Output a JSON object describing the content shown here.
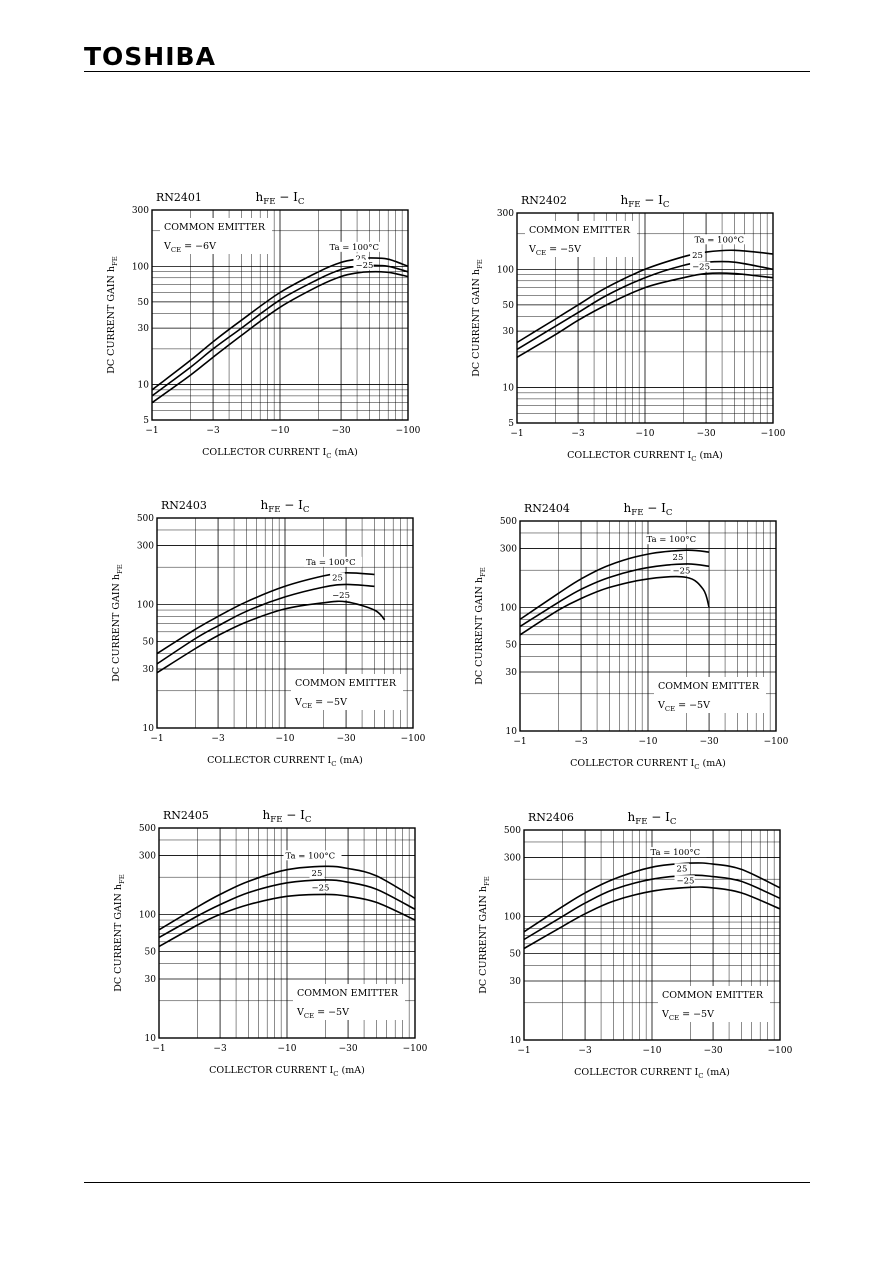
{
  "header": {
    "brand": "TOSHIBA"
  },
  "chart_data": [
    {
      "type": "line",
      "part": "RN2401",
      "title": {
        "main": "h",
        "sub": "FE",
        "mid": " − I",
        "sub2": "C"
      },
      "xlabel": {
        "main": "COLLECTOR CURRENT   I",
        "sub": "C",
        "unit": "  (mA)"
      },
      "ylabel": {
        "main": "DC CURRENT GAIN   h",
        "sub": "FE"
      },
      "xlim": [
        -1,
        -100
      ],
      "ylim": [
        5,
        300
      ],
      "xscale": "log",
      "yscale": "log",
      "xticks": [
        -1,
        -3,
        -10,
        -30,
        -100
      ],
      "yticks": [
        5,
        10,
        30,
        50,
        100,
        300
      ],
      "grid": true,
      "conditions": {
        "line1": "COMMON EMITTER",
        "line2_main": "V",
        "line2_sub": "CE",
        "line2_rest": " = −6V",
        "position": "top-left"
      },
      "series": [
        {
          "name": "Ta = 100°C",
          "x": [
            -1,
            -2,
            -3,
            -5,
            -10,
            -20,
            -30,
            -40,
            -50,
            -70,
            -100
          ],
          "y": [
            9,
            16,
            23,
            35,
            60,
            90,
            108,
            115,
            118,
            115,
            100
          ]
        },
        {
          "name": "25",
          "x": [
            -1,
            -2,
            -3,
            -5,
            -10,
            -20,
            -30,
            -40,
            -50,
            -70,
            -100
          ],
          "y": [
            8,
            14,
            20,
            30,
            52,
            78,
            94,
            100,
            102,
            100,
            90
          ]
        },
        {
          "name": "−25",
          "x": [
            -1,
            -2,
            -3,
            -5,
            -10,
            -20,
            -30,
            -40,
            -50,
            -70,
            -100
          ],
          "y": [
            7,
            12,
            17,
            26,
            45,
            68,
            82,
            88,
            90,
            89,
            82
          ]
        }
      ]
    },
    {
      "type": "line",
      "part": "RN2402",
      "title": {
        "main": "h",
        "sub": "FE",
        "mid": " − I",
        "sub2": "C"
      },
      "xlabel": {
        "main": "COLLECTOR CURRENT   I",
        "sub": "C",
        "unit": "  (mA)"
      },
      "ylabel": {
        "main": "DC CURRENT GAIN   h",
        "sub": "FE"
      },
      "xlim": [
        -1,
        -100
      ],
      "ylim": [
        5,
        300
      ],
      "xscale": "log",
      "yscale": "log",
      "xticks": [
        -1,
        -3,
        -10,
        -30,
        -100
      ],
      "yticks": [
        5,
        10,
        30,
        50,
        100,
        300
      ],
      "grid": true,
      "conditions": {
        "line1": "COMMON EMITTER",
        "line2_main": "V",
        "line2_sub": "CE",
        "line2_rest": " = −5V",
        "position": "top-left"
      },
      "series": [
        {
          "name": "Ta = 100°C",
          "x": [
            -1,
            -2,
            -3,
            -5,
            -10,
            -20,
            -30,
            -50,
            -100
          ],
          "y": [
            24,
            38,
            50,
            70,
            100,
            128,
            140,
            145,
            135
          ]
        },
        {
          "name": "25",
          "x": [
            -1,
            -2,
            -3,
            -5,
            -10,
            -20,
            -30,
            -50,
            -100
          ],
          "y": [
            21,
            33,
            43,
            60,
            85,
            108,
            115,
            115,
            100
          ]
        },
        {
          "name": "−25",
          "x": [
            -1,
            -2,
            -3,
            -5,
            -10,
            -20,
            -30,
            -50,
            -100
          ],
          "y": [
            18,
            28,
            37,
            50,
            70,
            85,
            92,
            92,
            85
          ]
        }
      ]
    },
    {
      "type": "line",
      "part": "RN2403",
      "title": {
        "main": "h",
        "sub": "FE",
        "mid": " − I",
        "sub2": "C"
      },
      "xlabel": {
        "main": "COLLECTOR CURRENT   I",
        "sub": "C",
        "unit": "  (mA)"
      },
      "ylabel": {
        "main": "DC CURRENT GAIN   h",
        "sub": "FE"
      },
      "xlim": [
        -1,
        -100
      ],
      "ylim": [
        10,
        500
      ],
      "xscale": "log",
      "yscale": "log",
      "xticks": [
        -1,
        -3,
        -10,
        -30,
        -100
      ],
      "yticks": [
        10,
        30,
        50,
        100,
        300,
        500
      ],
      "grid": true,
      "conditions": {
        "line1": "COMMON EMITTER",
        "line2_main": "V",
        "line2_sub": "CE",
        "line2_rest": " = −5V",
        "position": "bottom-right"
      },
      "series": [
        {
          "name": "Ta = 100°C",
          "x": [
            -1,
            -2,
            -3,
            -5,
            -10,
            -20,
            -30,
            -50
          ],
          "y": [
            40,
            63,
            80,
            105,
            140,
            170,
            180,
            175
          ]
        },
        {
          "name": "25",
          "x": [
            -1,
            -2,
            -3,
            -5,
            -10,
            -20,
            -30,
            -50
          ],
          "y": [
            33,
            53,
            67,
            88,
            115,
            138,
            145,
            140
          ]
        },
        {
          "name": "−25",
          "x": [
            -1,
            -2,
            -3,
            -5,
            -10,
            -20,
            -30,
            -50,
            -60
          ],
          "y": [
            28,
            44,
            56,
            72,
            92,
            103,
            105,
            90,
            75
          ]
        }
      ]
    },
    {
      "type": "line",
      "part": "RN2404",
      "title": {
        "main": "h",
        "sub": "FE",
        "mid": " − I",
        "sub2": "C"
      },
      "xlabel": {
        "main": "COLLECTOR CURRENT   I",
        "sub": "C",
        "unit": "  (mA)"
      },
      "ylabel": {
        "main": "DC CURRENT GAIN   h",
        "sub": "FE"
      },
      "xlim": [
        -1,
        -100
      ],
      "ylim": [
        10,
        500
      ],
      "xscale": "log",
      "yscale": "log",
      "xticks": [
        -1,
        -3,
        -10,
        -30,
        -100
      ],
      "yticks": [
        10,
        30,
        50,
        100,
        300,
        500
      ],
      "grid": true,
      "conditions": {
        "line1": "COMMON EMITTER",
        "line2_main": "V",
        "line2_sub": "CE",
        "line2_rest": " = −5V",
        "position": "bottom-right"
      },
      "series": [
        {
          "name": "Ta = 100°C",
          "x": [
            -1,
            -2,
            -3,
            -5,
            -10,
            -20,
            -30
          ],
          "y": [
            80,
            130,
            170,
            220,
            270,
            290,
            280
          ]
        },
        {
          "name": "25",
          "x": [
            -1,
            -2,
            -3,
            -5,
            -10,
            -20,
            -30
          ],
          "y": [
            70,
            110,
            140,
            175,
            210,
            225,
            215
          ]
        },
        {
          "name": "−25",
          "x": [
            -1,
            -2,
            -3,
            -5,
            -10,
            -20,
            -27,
            -30
          ],
          "y": [
            60,
            95,
            118,
            145,
            170,
            175,
            140,
            100
          ]
        }
      ]
    },
    {
      "type": "line",
      "part": "RN2405",
      "title": {
        "main": "h",
        "sub": "FE",
        "mid": " − I",
        "sub2": "C"
      },
      "xlabel": {
        "main": "COLLECTOR CURRENT   I",
        "sub": "C",
        "unit": "  (mA)"
      },
      "ylabel": {
        "main": "DC CURRENT GAIN   h",
        "sub": "FE"
      },
      "xlim": [
        -1,
        -100
      ],
      "ylim": [
        10,
        500
      ],
      "xscale": "log",
      "yscale": "log",
      "xticks": [
        -1,
        -3,
        -10,
        -30,
        -100
      ],
      "yticks": [
        10,
        30,
        50,
        100,
        300,
        500
      ],
      "grid": true,
      "conditions": {
        "line1": "COMMON EMITTER",
        "line2_main": "V",
        "line2_sub": "CE",
        "line2_rest": " = −5V",
        "position": "bottom-right"
      },
      "series": [
        {
          "name": "Ta = 100°C",
          "x": [
            -1,
            -2,
            -3,
            -5,
            -10,
            -20,
            -30,
            -50,
            -100
          ],
          "y": [
            75,
            115,
            145,
            185,
            230,
            245,
            235,
            205,
            135
          ]
        },
        {
          "name": "25",
          "x": [
            -1,
            -2,
            -3,
            -5,
            -10,
            -20,
            -30,
            -50,
            -100
          ],
          "y": [
            65,
            97,
            120,
            150,
            180,
            190,
            182,
            160,
            110
          ]
        },
        {
          "name": "−25",
          "x": [
            -1,
            -2,
            -3,
            -5,
            -10,
            -20,
            -30,
            -50,
            -100
          ],
          "y": [
            55,
            82,
            100,
            120,
            140,
            145,
            140,
            125,
            90
          ]
        }
      ]
    },
    {
      "type": "line",
      "part": "RN2406",
      "title": {
        "main": "h",
        "sub": "FE",
        "mid": " − I",
        "sub2": "C"
      },
      "xlabel": {
        "main": "COLLECTOR CURRENT   I",
        "sub": "C",
        "unit": "  (mA)"
      },
      "ylabel": {
        "main": "DC CURRENT GAIN   h",
        "sub": "FE"
      },
      "xlim": [
        -1,
        -100
      ],
      "ylim": [
        10,
        500
      ],
      "xscale": "log",
      "yscale": "log",
      "xticks": [
        -1,
        -3,
        -10,
        -30,
        -100
      ],
      "yticks": [
        10,
        30,
        50,
        100,
        300,
        500
      ],
      "grid": true,
      "conditions": {
        "line1": "COMMON EMITTER",
        "line2_main": "V",
        "line2_sub": "CE",
        "line2_rest": " = −5V",
        "position": "bottom-right"
      },
      "series": [
        {
          "name": "Ta = 100°C",
          "x": [
            -1,
            -2,
            -3,
            -5,
            -10,
            -20,
            -30,
            -50,
            -100
          ],
          "y": [
            75,
            120,
            155,
            200,
            250,
            270,
            265,
            240,
            170
          ]
        },
        {
          "name": "25",
          "x": [
            -1,
            -2,
            -3,
            -5,
            -10,
            -20,
            -30,
            -50,
            -100
          ],
          "y": [
            65,
            100,
            128,
            165,
            200,
            215,
            210,
            192,
            140
          ]
        },
        {
          "name": "−25",
          "x": [
            -1,
            -2,
            -3,
            -5,
            -10,
            -20,
            -30,
            -50,
            -100
          ],
          "y": [
            55,
            83,
            105,
            133,
            160,
            172,
            170,
            155,
            115
          ]
        }
      ]
    }
  ]
}
